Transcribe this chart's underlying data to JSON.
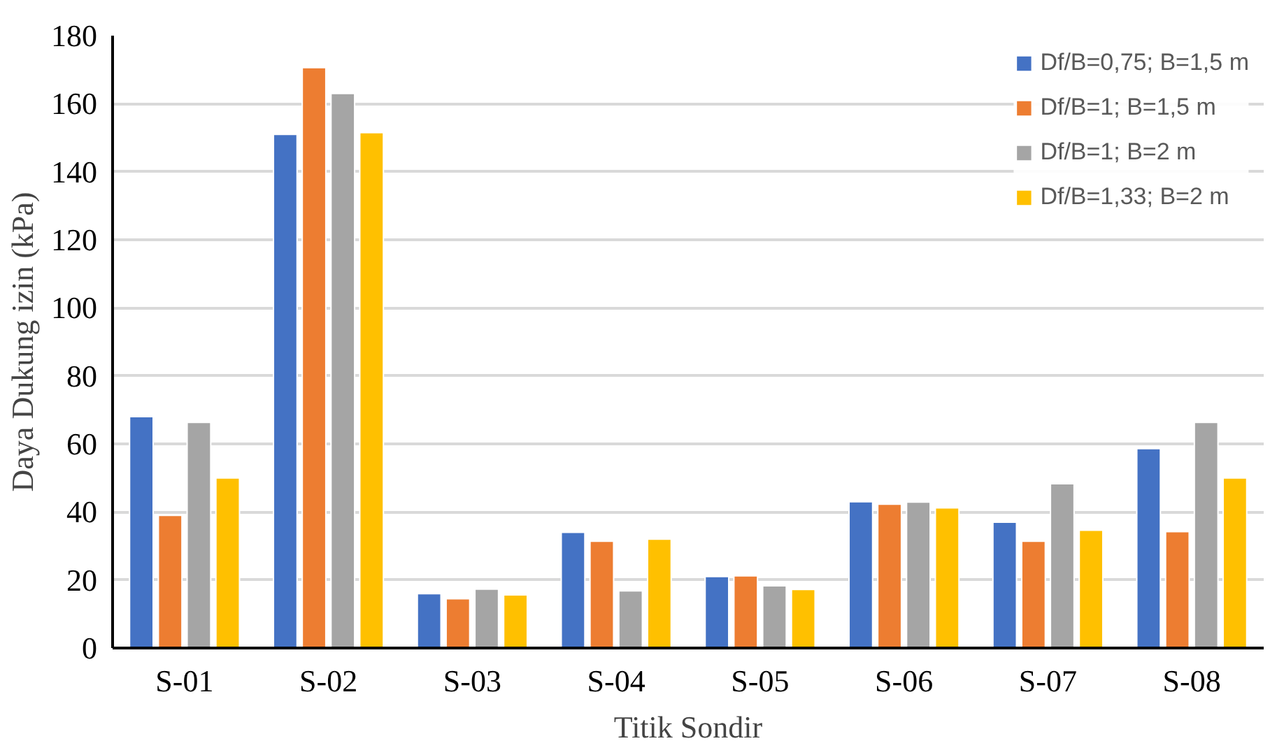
{
  "chart_data": {
    "type": "bar",
    "xlabel": "Titik Sondir",
    "ylabel": "Daya Dukung izin (kPa)",
    "categories": [
      "S-01",
      "S-02",
      "S-03",
      "S-04",
      "S-05",
      "S-06",
      "S-07",
      "S-08"
    ],
    "series": [
      {
        "name": "Df/B=0,75; B=1,5 m",
        "color": "#4472c4",
        "values": [
          68,
          151,
          16,
          34,
          21,
          43,
          37,
          58.6
        ]
      },
      {
        "name": "Df/B=1; B=1,5 m",
        "color": "#ed7d31",
        "values": [
          39,
          170.6,
          14.5,
          31.4,
          21.2,
          42.3,
          31.4,
          34.2
        ]
      },
      {
        "name": "Df/B=1; B=2 m",
        "color": "#a5a5a5",
        "values": [
          66.3,
          163,
          17.3,
          16.8,
          18.3,
          42.9,
          48.3,
          66.3
        ]
      },
      {
        "name": "Df/B=1,33; B=2 m",
        "color": "#ffc000",
        "values": [
          50,
          151.5,
          15.6,
          32,
          17.2,
          41.2,
          34.6,
          50
        ]
      }
    ],
    "ylim": [
      0,
      180
    ],
    "yticks": [
      0,
      20,
      40,
      60,
      80,
      100,
      120,
      140,
      160,
      180
    ],
    "grid": "y",
    "legend": "top right"
  }
}
